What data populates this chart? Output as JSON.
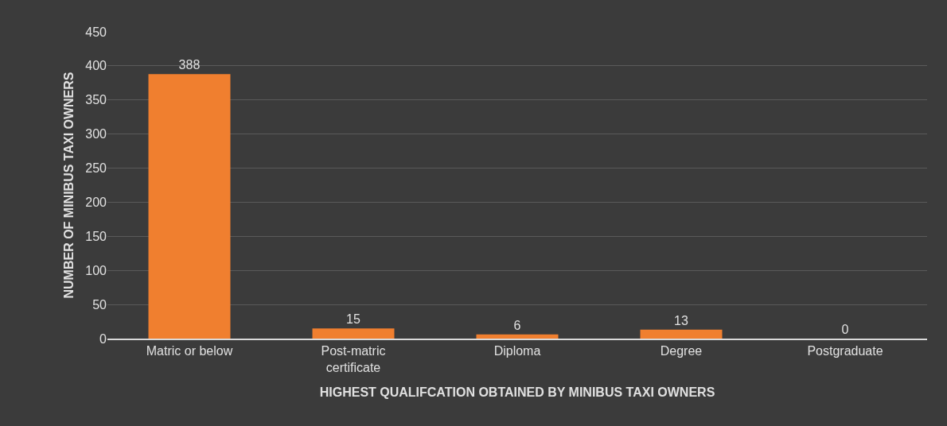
{
  "chart_data": {
    "type": "bar",
    "xlabel": "HIGHEST QUALIFCATION OBTAINED BY MINIBUS TAXI OWNERS",
    "ylabel": "NUMBER OF MINIBUS TAXI OWNERS",
    "categories": [
      "Matric or below",
      "Post-matric certificate",
      "Diploma",
      "Degree",
      "Postgraduate"
    ],
    "values": [
      388,
      15,
      6,
      13,
      0
    ],
    "color": "#f07f2f",
    "ylim": [
      0,
      450
    ],
    "yticks": [
      0,
      50,
      100,
      150,
      200,
      250,
      300,
      350,
      400,
      450
    ],
    "grid": "y",
    "data_labels": true,
    "legend": false
  }
}
